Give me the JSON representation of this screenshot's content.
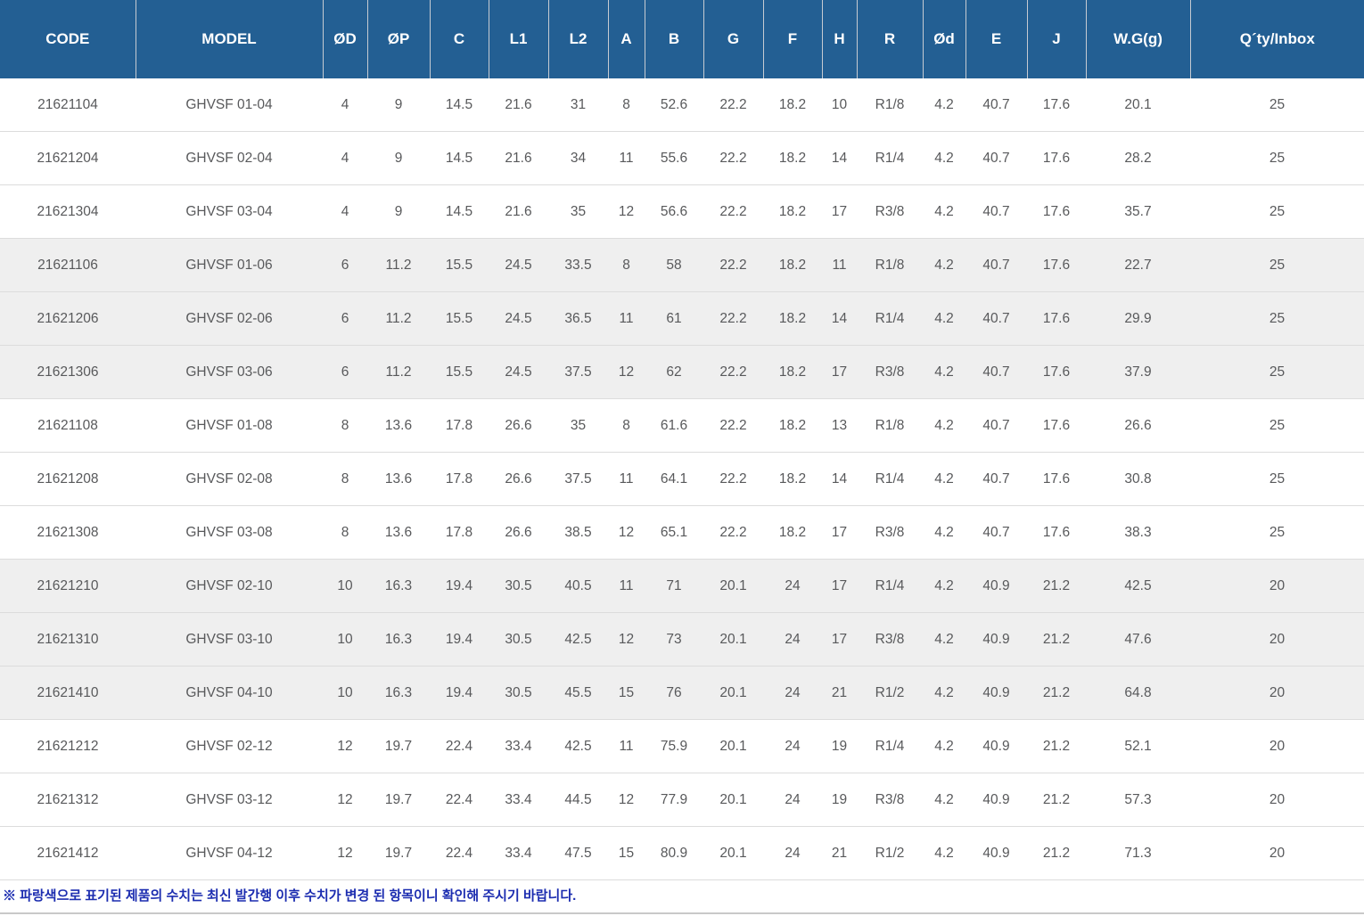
{
  "table": {
    "columns": [
      "CODE",
      "MODEL",
      "ØD",
      "ØP",
      "C",
      "L1",
      "L2",
      "A",
      "B",
      "G",
      "F",
      "H",
      "R",
      "Ød",
      "E",
      "J",
      "W.G(g)",
      "Q´ty/Inbox"
    ],
    "rows": [
      {
        "shaded": false,
        "cells": [
          "21621104",
          "GHVSF 01-04",
          "4",
          "9",
          "14.5",
          "21.6",
          "31",
          "8",
          "52.6",
          "22.2",
          "18.2",
          "10",
          "R1/8",
          "4.2",
          "40.7",
          "17.6",
          "20.1",
          "25"
        ]
      },
      {
        "shaded": false,
        "cells": [
          "21621204",
          "GHVSF 02-04",
          "4",
          "9",
          "14.5",
          "21.6",
          "34",
          "11",
          "55.6",
          "22.2",
          "18.2",
          "14",
          "R1/4",
          "4.2",
          "40.7",
          "17.6",
          "28.2",
          "25"
        ]
      },
      {
        "shaded": false,
        "cells": [
          "21621304",
          "GHVSF 03-04",
          "4",
          "9",
          "14.5",
          "21.6",
          "35",
          "12",
          "56.6",
          "22.2",
          "18.2",
          "17",
          "R3/8",
          "4.2",
          "40.7",
          "17.6",
          "35.7",
          "25"
        ]
      },
      {
        "shaded": true,
        "cells": [
          "21621106",
          "GHVSF 01-06",
          "6",
          "11.2",
          "15.5",
          "24.5",
          "33.5",
          "8",
          "58",
          "22.2",
          "18.2",
          "11",
          "R1/8",
          "4.2",
          "40.7",
          "17.6",
          "22.7",
          "25"
        ]
      },
      {
        "shaded": true,
        "cells": [
          "21621206",
          "GHVSF 02-06",
          "6",
          "11.2",
          "15.5",
          "24.5",
          "36.5",
          "11",
          "61",
          "22.2",
          "18.2",
          "14",
          "R1/4",
          "4.2",
          "40.7",
          "17.6",
          "29.9",
          "25"
        ]
      },
      {
        "shaded": true,
        "cells": [
          "21621306",
          "GHVSF 03-06",
          "6",
          "11.2",
          "15.5",
          "24.5",
          "37.5",
          "12",
          "62",
          "22.2",
          "18.2",
          "17",
          "R3/8",
          "4.2",
          "40.7",
          "17.6",
          "37.9",
          "25"
        ]
      },
      {
        "shaded": false,
        "cells": [
          "21621108",
          "GHVSF 01-08",
          "8",
          "13.6",
          "17.8",
          "26.6",
          "35",
          "8",
          "61.6",
          "22.2",
          "18.2",
          "13",
          "R1/8",
          "4.2",
          "40.7",
          "17.6",
          "26.6",
          "25"
        ]
      },
      {
        "shaded": false,
        "cells": [
          "21621208",
          "GHVSF 02-08",
          "8",
          "13.6",
          "17.8",
          "26.6",
          "37.5",
          "11",
          "64.1",
          "22.2",
          "18.2",
          "14",
          "R1/4",
          "4.2",
          "40.7",
          "17.6",
          "30.8",
          "25"
        ]
      },
      {
        "shaded": false,
        "cells": [
          "21621308",
          "GHVSF 03-08",
          "8",
          "13.6",
          "17.8",
          "26.6",
          "38.5",
          "12",
          "65.1",
          "22.2",
          "18.2",
          "17",
          "R3/8",
          "4.2",
          "40.7",
          "17.6",
          "38.3",
          "25"
        ]
      },
      {
        "shaded": true,
        "cells": [
          "21621210",
          "GHVSF 02-10",
          "10",
          "16.3",
          "19.4",
          "30.5",
          "40.5",
          "11",
          "71",
          "20.1",
          "24",
          "17",
          "R1/4",
          "4.2",
          "40.9",
          "21.2",
          "42.5",
          "20"
        ]
      },
      {
        "shaded": true,
        "cells": [
          "21621310",
          "GHVSF 03-10",
          "10",
          "16.3",
          "19.4",
          "30.5",
          "42.5",
          "12",
          "73",
          "20.1",
          "24",
          "17",
          "R3/8",
          "4.2",
          "40.9",
          "21.2",
          "47.6",
          "20"
        ]
      },
      {
        "shaded": true,
        "cells": [
          "21621410",
          "GHVSF 04-10",
          "10",
          "16.3",
          "19.4",
          "30.5",
          "45.5",
          "15",
          "76",
          "20.1",
          "24",
          "21",
          "R1/2",
          "4.2",
          "40.9",
          "21.2",
          "64.8",
          "20"
        ]
      },
      {
        "shaded": false,
        "cells": [
          "21621212",
          "GHVSF 02-12",
          "12",
          "19.7",
          "22.4",
          "33.4",
          "42.5",
          "11",
          "75.9",
          "20.1",
          "24",
          "19",
          "R1/4",
          "4.2",
          "40.9",
          "21.2",
          "52.1",
          "20"
        ]
      },
      {
        "shaded": false,
        "cells": [
          "21621312",
          "GHVSF 03-12",
          "12",
          "19.7",
          "22.4",
          "33.4",
          "44.5",
          "12",
          "77.9",
          "20.1",
          "24",
          "19",
          "R3/8",
          "4.2",
          "40.9",
          "21.2",
          "57.3",
          "20"
        ]
      },
      {
        "shaded": false,
        "cells": [
          "21621412",
          "GHVSF 04-12",
          "12",
          "19.7",
          "22.4",
          "33.4",
          "47.5",
          "15",
          "80.9",
          "20.1",
          "24",
          "21",
          "R1/2",
          "4.2",
          "40.9",
          "21.2",
          "71.3",
          "20"
        ]
      }
    ]
  },
  "footnote": "※ 파랑색으로 표기된 제품의 수치는 최신 발간행 이후 수치가 변경 된 항목이니 확인해 주시기 바랍니다.",
  "colors": {
    "header_bg": "#235F93",
    "header_text": "#FFFFFF",
    "header_divider": "#C6CBD2",
    "row_border": "#DCDCDC",
    "shaded_row_bg": "#EFEFEF",
    "cell_text": "#58595B",
    "footnote_text": "#1C2DB0",
    "bottom_border": "#C9C9C9"
  }
}
